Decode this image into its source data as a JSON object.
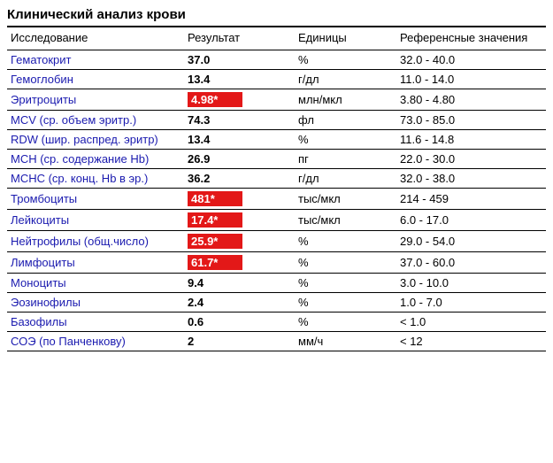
{
  "title": "Клинический анализ крови",
  "columns": {
    "name": "Исследование",
    "result": "Результат",
    "units": "Единицы",
    "range": "Референсные значения"
  },
  "colors": {
    "link": "#1a1aaf",
    "flag_bg": "#e31818",
    "flag_text": "#ffffff",
    "border": "#000000",
    "text": "#000000",
    "background": "#ffffff"
  },
  "rows": [
    {
      "name": "Гематокрит",
      "result": "37.0",
      "flag": false,
      "units": "%",
      "range": "32.0 - 40.0"
    },
    {
      "name": "Гемоглобин",
      "result": "13.4",
      "flag": false,
      "units": "г/дл",
      "range": "11.0 - 14.0"
    },
    {
      "name": "Эритроциты",
      "result": "4.98*",
      "flag": true,
      "units": "млн/мкл",
      "range": "3.80 - 4.80"
    },
    {
      "name": "MCV (ср. объем эритр.)",
      "result": "74.3",
      "flag": false,
      "units": "фл",
      "range": "73.0 - 85.0"
    },
    {
      "name": "RDW (шир. распред. эритр)",
      "result": "13.4",
      "flag": false,
      "units": "%",
      "range": "11.6 - 14.8"
    },
    {
      "name": "MCH (ср. содержание Hb)",
      "result": "26.9",
      "flag": false,
      "units": "пг",
      "range": "22.0 - 30.0"
    },
    {
      "name": "MCHC (ср. конц. Hb в эр.)",
      "result": "36.2",
      "flag": false,
      "units": "г/дл",
      "range": "32.0 - 38.0"
    },
    {
      "name": "Тромбоциты",
      "result": "481*",
      "flag": true,
      "units": "тыс/мкл",
      "range": "214 - 459"
    },
    {
      "name": "Лейкоциты",
      "result": "17.4*",
      "flag": true,
      "units": "тыс/мкл",
      "range": "6.0 - 17.0"
    },
    {
      "name": "Нейтрофилы (общ.число)",
      "result": "25.9*",
      "flag": true,
      "units": "%",
      "range": "29.0 - 54.0"
    },
    {
      "name": "Лимфоциты",
      "result": "61.7*",
      "flag": true,
      "units": "%",
      "range": "37.0 - 60.0"
    },
    {
      "name": "Моноциты",
      "result": "9.4",
      "flag": false,
      "units": "%",
      "range": "3.0 - 10.0"
    },
    {
      "name": "Эозинофилы",
      "result": "2.4",
      "flag": false,
      "units": "%",
      "range": "1.0 - 7.0"
    },
    {
      "name": "Базофилы",
      "result": "0.6",
      "flag": false,
      "units": "%",
      "range": "< 1.0"
    },
    {
      "name": "СОЭ (по Панченкову)",
      "result": "2",
      "flag": false,
      "units": "мм/ч",
      "range": "< 12"
    }
  ]
}
